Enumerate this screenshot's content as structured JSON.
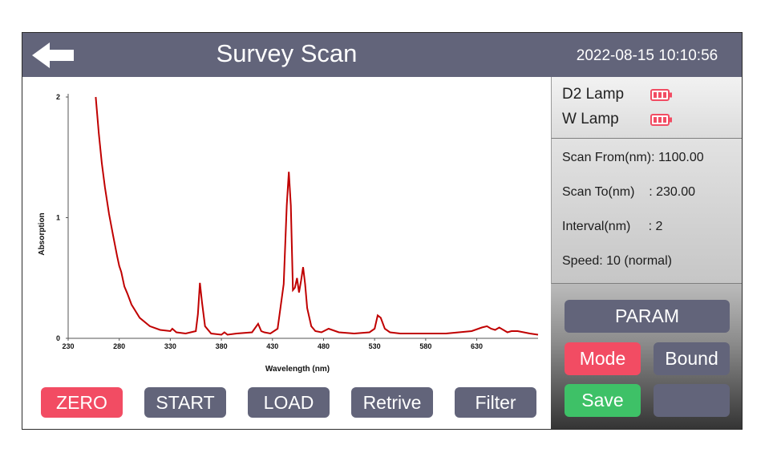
{
  "header": {
    "title": "Survey Scan",
    "datetime": "2022-08-15 10:10:56",
    "back_icon": "arrow-left-icon"
  },
  "lamps": [
    {
      "label": "D2 Lamp",
      "icon": "battery-full-icon",
      "color": "#f24c63"
    },
    {
      "label": "W  Lamp",
      "icon": "battery-full-icon",
      "color": "#f24c63"
    }
  ],
  "scan_params": {
    "from": "Scan From(nm): 1100.00",
    "to": "Scan To(nm)    : 230.00",
    "interval": "Interval(nm)     : 2",
    "speed": "Speed: 10 (normal)"
  },
  "side_buttons": {
    "param": "PARAM",
    "mode": "Mode",
    "bound": "Bound",
    "save": "Save",
    "blank": ""
  },
  "bottom_buttons": {
    "zero": "ZERO",
    "start": "START",
    "load": "LOAD",
    "retrive": "Retrive",
    "filter": "Filter"
  },
  "colors": {
    "header_bg": "#62647a",
    "accent_red": "#f24c63",
    "accent_green": "#3ec167",
    "trace": "#c00000"
  },
  "chart_data": {
    "type": "line",
    "xlabel": "Wavelength (nm)",
    "ylabel": "Absorption",
    "x_ticks": [
      230,
      280,
      330,
      380,
      430,
      480,
      530,
      580,
      630
    ],
    "y_ticks": [
      0,
      1,
      2
    ],
    "xlim": [
      230,
      690
    ],
    "ylim": [
      0,
      2
    ],
    "series": [
      {
        "x": [
          257,
          260,
          263,
          266,
          270,
          274,
          278,
          280,
          282,
          285,
          288,
          292,
          300,
          310,
          320,
          330,
          332,
          336,
          345,
          355,
          357,
          359,
          361,
          364,
          370,
          380,
          383,
          386,
          395,
          410,
          416,
          419,
          422,
          428,
          435,
          441,
          444,
          446,
          448,
          450,
          452,
          454,
          456,
          458,
          460,
          462,
          464,
          468,
          472,
          478,
          485,
          495,
          510,
          525,
          530,
          533,
          536,
          540,
          545,
          555,
          575,
          600,
          625,
          635,
          640,
          644,
          648,
          652,
          656,
          660,
          664,
          670,
          676,
          682,
          690
        ],
        "y": [
          2.0,
          1.7,
          1.45,
          1.25,
          1.03,
          0.85,
          0.68,
          0.6,
          0.55,
          0.43,
          0.37,
          0.28,
          0.17,
          0.1,
          0.07,
          0.06,
          0.08,
          0.05,
          0.04,
          0.06,
          0.2,
          0.46,
          0.3,
          0.1,
          0.04,
          0.03,
          0.05,
          0.03,
          0.04,
          0.05,
          0.12,
          0.06,
          0.05,
          0.04,
          0.08,
          0.45,
          1.1,
          1.38,
          1.1,
          0.4,
          0.42,
          0.5,
          0.38,
          0.48,
          0.59,
          0.45,
          0.25,
          0.1,
          0.06,
          0.05,
          0.08,
          0.05,
          0.04,
          0.05,
          0.08,
          0.19,
          0.17,
          0.08,
          0.05,
          0.04,
          0.04,
          0.04,
          0.06,
          0.09,
          0.1,
          0.08,
          0.07,
          0.09,
          0.07,
          0.05,
          0.06,
          0.06,
          0.05,
          0.04,
          0.03
        ]
      }
    ]
  }
}
